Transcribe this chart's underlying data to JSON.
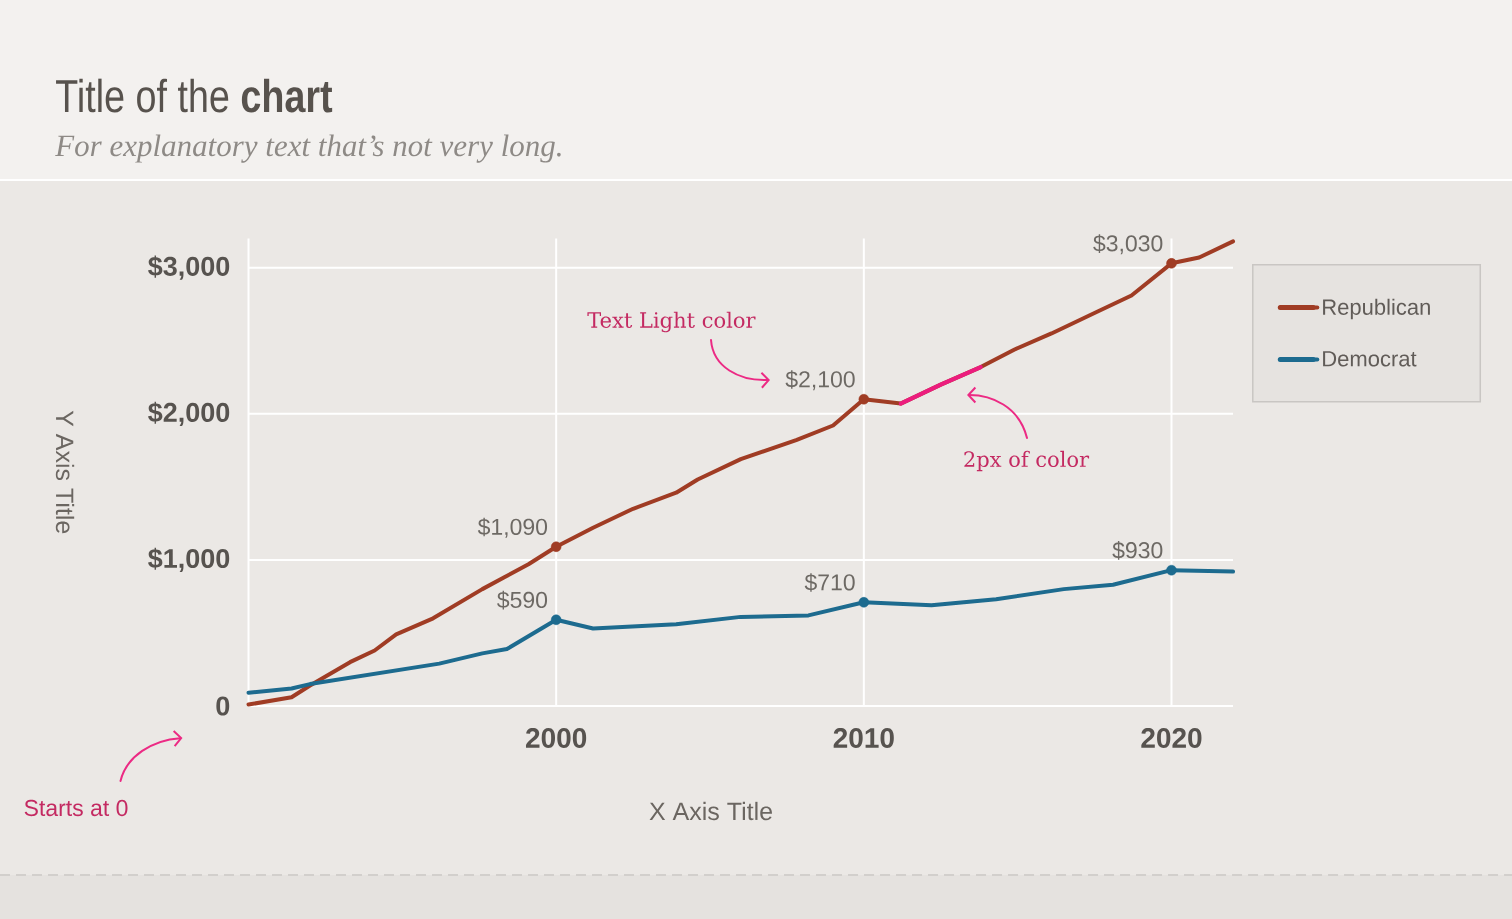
{
  "chart_data": {
    "type": "line",
    "title": "Title of the **chart**",
    "subtitle": "For explanatory text that’s not very long.",
    "xlabel": "X Axis Title",
    "ylabel": "Y Axis Title",
    "xlim": [
      1990,
      2022
    ],
    "ylim": [
      0,
      3200
    ],
    "xticks": [
      2000,
      2010,
      2020
    ],
    "yticks": [
      0,
      {
        "value": 1000,
        "label": "$1,000"
      },
      {
        "value": 2000,
        "label": "$2,000"
      },
      {
        "value": 3000,
        "label": "$3,000"
      }
    ],
    "grid": true,
    "legend": "top right",
    "line_style": "solid",
    "series": [
      {
        "name": "Republican",
        "color": "#a03c24",
        "x": [
          1990,
          1991.4,
          1992,
          1993.3,
          1994.1,
          1994.8,
          1996,
          1997.6,
          1998.3,
          1999.1,
          2000,
          2001.2,
          2002.5,
          2003.9,
          2004.6,
          2006,
          2007.8,
          2009,
          2010,
          2011.2,
          2012.5,
          2013.8,
          2014.9,
          2016.1,
          2017.6,
          2018.7,
          2020,
          2020.9,
          2022
        ],
        "values": [
          10,
          60,
          140,
          300,
          380,
          490,
          600,
          800,
          880,
          970,
          1090,
          1220,
          1350,
          1460,
          1550,
          1690,
          1820,
          1920,
          2100,
          2070,
          2200,
          2320,
          2440,
          2550,
          2700,
          2810,
          3030,
          3070,
          3180
        ]
      },
      {
        "name": "Democrat",
        "color": "#1d6b8f",
        "x": [
          1990,
          1991.4,
          1992,
          1994.1,
          1996.2,
          1997.6,
          1998.4,
          2000,
          2001.2,
          2003.9,
          2006,
          2008.2,
          2010,
          2012.2,
          2014.3,
          2016.5,
          2018.1,
          2020,
          2022
        ],
        "values": [
          90,
          120,
          150,
          220,
          290,
          360,
          390,
          590,
          530,
          560,
          610,
          620,
          710,
          690,
          730,
          800,
          830,
          930,
          920
        ]
      },
      {
        "color": "#ec1c7e",
        "x": [
          2011.2,
          2012.5,
          2013.8
        ],
        "values": [
          2070,
          2200,
          2320
        ]
      },
      {
        "type": "scatter",
        "color": "#a03c24",
        "marker": "circle",
        "x": [
          2000,
          2010,
          2020
        ],
        "values": [
          1090,
          2100,
          3030
        ],
        "value_labels": [
          "$1,090",
          "$2,100",
          "$3,030"
        ]
      },
      {
        "type": "scatter",
        "color": "#1d6b8f",
        "marker": "circle",
        "x": [
          2000,
          2010,
          2020
        ],
        "values": [
          590,
          710,
          930
        ],
        "value_labels": [
          "$590",
          "$710",
          "$930"
        ]
      }
    ],
    "annotations": [
      "Text Light color",
      "2px of color",
      "Starts at 0"
    ]
  }
}
